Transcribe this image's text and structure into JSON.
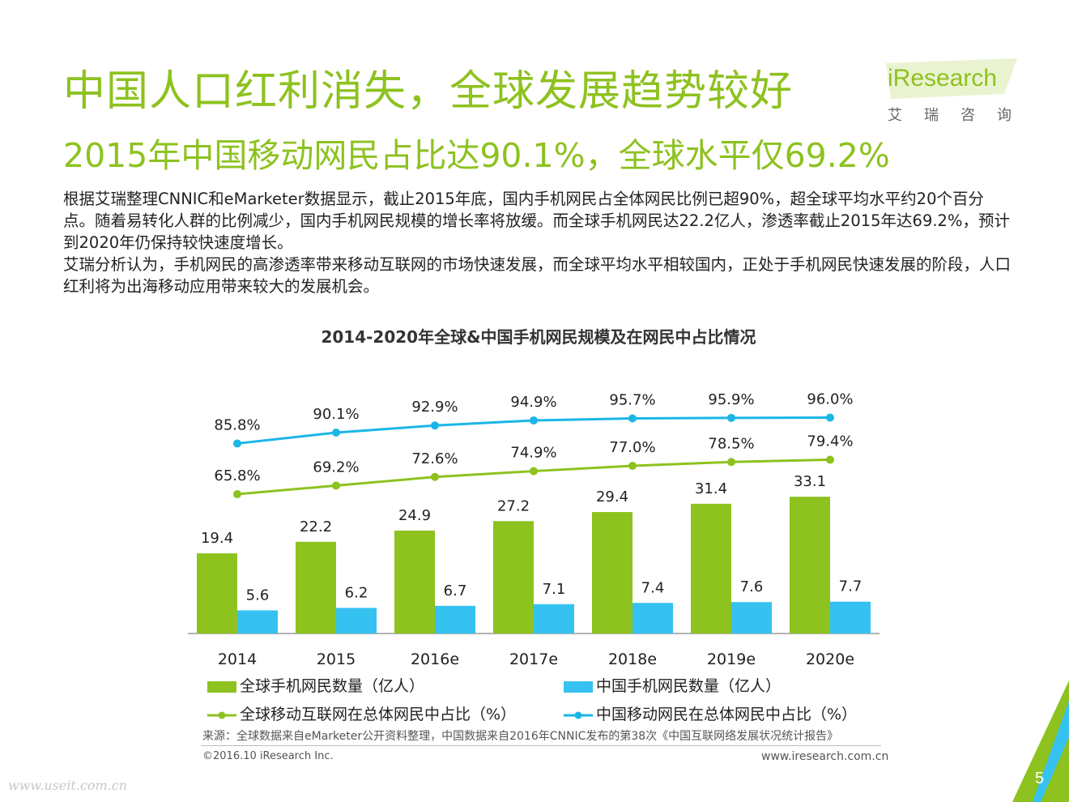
{
  "header": {
    "title": "中国人口红利消失，全球发展趋势较好",
    "subtitle": "2015年中国移动网民占比达90.1%，全球水平仅69.2%"
  },
  "logo": {
    "brand": "iResearch",
    "sub": "艾瑞咨询"
  },
  "paragraphs": [
    "根据艾瑞整理CNNIC和eMarketer数据显示，截止2015年底，国内手机网民占全体网民比例已超90%，超全球平均水平约20个百分点。随着易转化人群的比例减少，国内手机网民规模的增长率将放缓。而全球手机网民达22.2亿人，渗透率截止2015年达69.2%，预计到2020年仍保持较快速度增长。",
    "艾瑞分析认为，手机网民的高渗透率带来移动互联网的市场快速发展，而全球平均水平相较国内，正处于手机网民快速发展的阶段，人口红利将为出海移动应用带来较大的发展机会。"
  ],
  "chart_data": {
    "type": "bar",
    "title": "2014-2020年全球&中国手机网民规模及在网民中占比情况",
    "categories": [
      "2014",
      "2015",
      "2016e",
      "2017e",
      "2018e",
      "2019e",
      "2020e"
    ],
    "series": [
      {
        "name": "全球手机网民数量（亿人）",
        "kind": "bar",
        "color": "#8dc21f",
        "values": [
          19.4,
          22.2,
          24.9,
          27.2,
          29.4,
          31.4,
          33.1
        ],
        "labels": [
          "19.4",
          "22.2",
          "24.9",
          "27.2",
          "29.4",
          "31.4",
          "33.1"
        ]
      },
      {
        "name": "中国手机网民数量（亿人）",
        "kind": "bar",
        "color": "#35c2f0",
        "values": [
          5.6,
          6.2,
          6.7,
          7.1,
          7.4,
          7.6,
          7.7
        ],
        "labels": [
          "5.6",
          "6.2",
          "6.7",
          "7.1",
          "7.4",
          "7.6",
          "7.7"
        ]
      },
      {
        "name": "全球移动互联网在总体网民中占比（%）",
        "kind": "line",
        "color": "#8dc21f",
        "values": [
          65.8,
          69.2,
          72.6,
          74.9,
          77.0,
          78.5,
          79.4
        ],
        "labels": [
          "65.8%",
          "69.2%",
          "72.6%",
          "74.9%",
          "77.0%",
          "78.5%",
          "79.4%"
        ]
      },
      {
        "name": "中国移动网民在总体网民中占比（%）",
        "kind": "line",
        "color": "#1ab6e6",
        "values": [
          85.8,
          90.1,
          92.9,
          94.9,
          95.7,
          95.9,
          96.0
        ],
        "labels": [
          "85.8%",
          "90.1%",
          "92.9%",
          "94.9%",
          "95.7%",
          "95.9%",
          "96.0%"
        ]
      }
    ],
    "bar_ylim": [
      0,
      40
    ],
    "line_ylim": [
      0,
      100
    ],
    "grid": false,
    "legend_position": "bottom"
  },
  "legend": {
    "bar_global": "全球手机网民数量（亿人）",
    "bar_china": "中国手机网民数量（亿人）",
    "line_global": "全球移动互联网在总体网民中占比（%）",
    "line_china": "中国移动网民在总体网民中占比（%）"
  },
  "footer": {
    "source": "来源：全球数据来自eMarketer公开资料整理，中国数据来自2016年CNNIC发布的第38次《中国互联网络发展状况统计报告》",
    "copyright": "©2016.10  iResearch  Inc.",
    "website": "www.iresearch.com.cn",
    "watermark": "www.useit.com.cn",
    "page_number": "5"
  },
  "colors": {
    "accent_green": "#8dc21f",
    "accent_blue": "#35c2f0",
    "line_blue": "#1ab6e6"
  }
}
